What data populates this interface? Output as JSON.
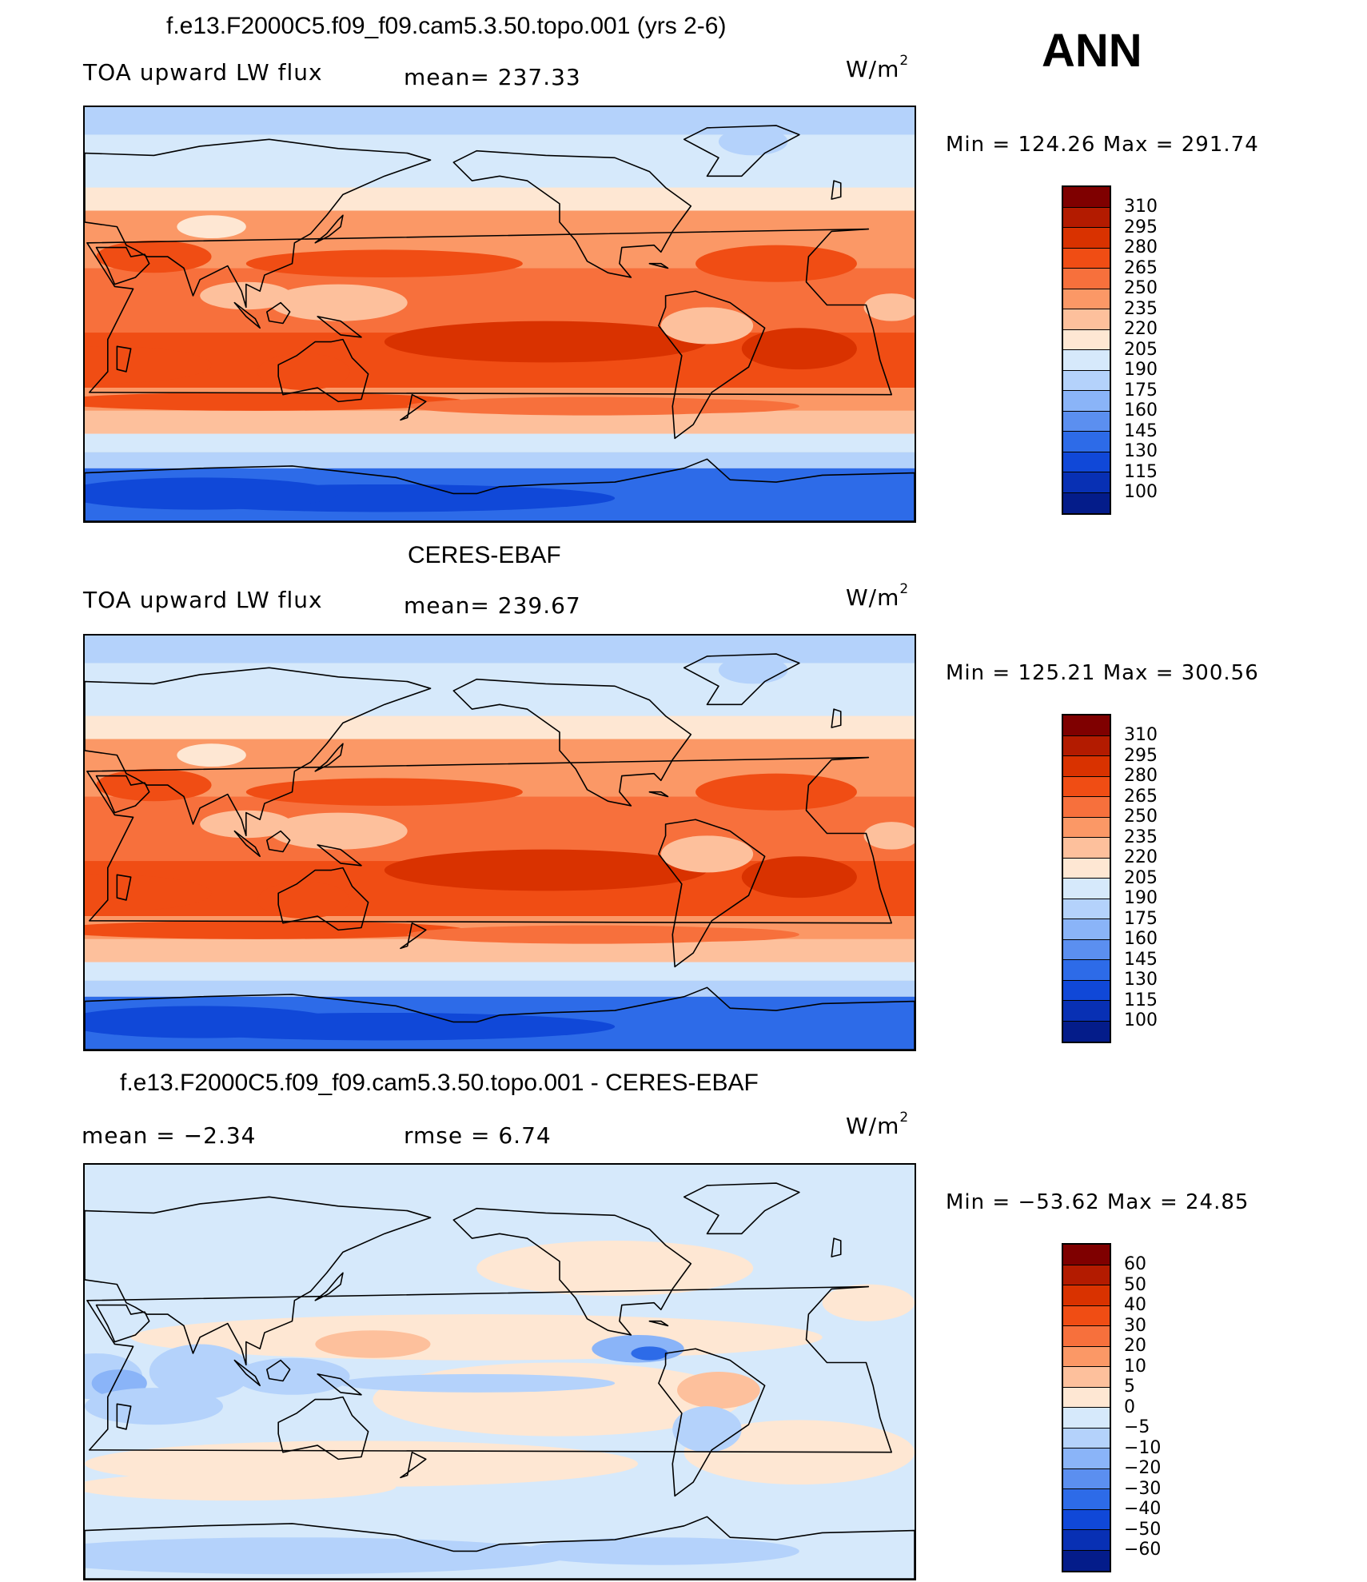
{
  "season": "ANN",
  "panels": [
    {
      "title": "f.e13.F2000C5.f09_f09.cam5.3.50.topo.001 (yrs 2-6)",
      "left_label": "TOA upward LW flux",
      "center_label": "mean= 237.33",
      "units": "W/m",
      "units_sup": "2",
      "minmax": "Min = 124.26 Max = 291.74",
      "colorbar_labels": [
        "310",
        "295",
        "280",
        "265",
        "250",
        "235",
        "220",
        "205",
        "190",
        "175",
        "160",
        "145",
        "130",
        "115",
        "100"
      ],
      "map_style": "model"
    },
    {
      "title": "CERES-EBAF",
      "left_label": "TOA upward LW flux",
      "center_label": "mean= 239.67",
      "units": "W/m",
      "units_sup": "2",
      "minmax": "Min = 125.21 Max = 300.56",
      "colorbar_labels": [
        "310",
        "295",
        "280",
        "265",
        "250",
        "235",
        "220",
        "205",
        "190",
        "175",
        "160",
        "145",
        "130",
        "115",
        "100"
      ],
      "map_style": "obs"
    },
    {
      "title": "f.e13.F2000C5.f09_f09.cam5.3.50.topo.001 - CERES-EBAF",
      "left_label": "mean =   −2.34",
      "center_label": "rmse =    6.74",
      "units": "W/m",
      "units_sup": "2",
      "minmax": "Min = −53.62 Max =  24.85",
      "colorbar_labels": [
        "60",
        "50",
        "40",
        "30",
        "20",
        "10",
        "5",
        "0",
        "−5",
        "−10",
        "−20",
        "−30",
        "−40",
        "−50",
        "−60"
      ],
      "map_style": "diff"
    }
  ],
  "colors": {
    "scale": [
      "#7f0000",
      "#b31b00",
      "#d93200",
      "#f04d14",
      "#f7703c",
      "#fb9866",
      "#fdc09c",
      "#fee7d3",
      "#d6e9fb",
      "#b4d2fb",
      "#8ab4f8",
      "#5b8ff0",
      "#2d6be8",
      "#1048d8",
      "#0830b4",
      "#041c8a"
    ]
  },
  "labels": {
    "min_word": "Min",
    "max_word": "Max"
  }
}
